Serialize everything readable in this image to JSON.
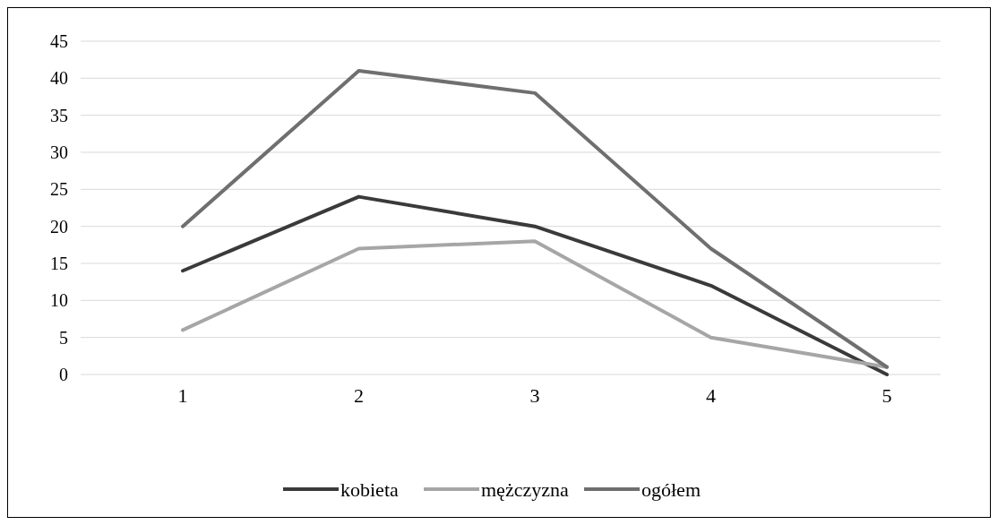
{
  "chart_data": {
    "type": "line",
    "categories": [
      "1",
      "2",
      "3",
      "4",
      "5"
    ],
    "series": [
      {
        "name": "kobieta",
        "color": "#3a3a3a",
        "values": [
          14,
          24,
          20,
          12,
          0
        ]
      },
      {
        "name": "mężczyzna",
        "color": "#a6a6a6",
        "values": [
          6,
          17,
          18,
          5,
          1
        ]
      },
      {
        "name": "ogółem",
        "color": "#6f6f6f",
        "values": [
          20,
          41,
          38,
          17,
          1
        ]
      }
    ],
    "ylim": [
      0,
      45
    ],
    "yticks": [
      0,
      5,
      10,
      15,
      20,
      25,
      30,
      35,
      40,
      45
    ],
    "grid": "y",
    "legend": "bottom",
    "marker": "none",
    "line_style": "solid"
  }
}
